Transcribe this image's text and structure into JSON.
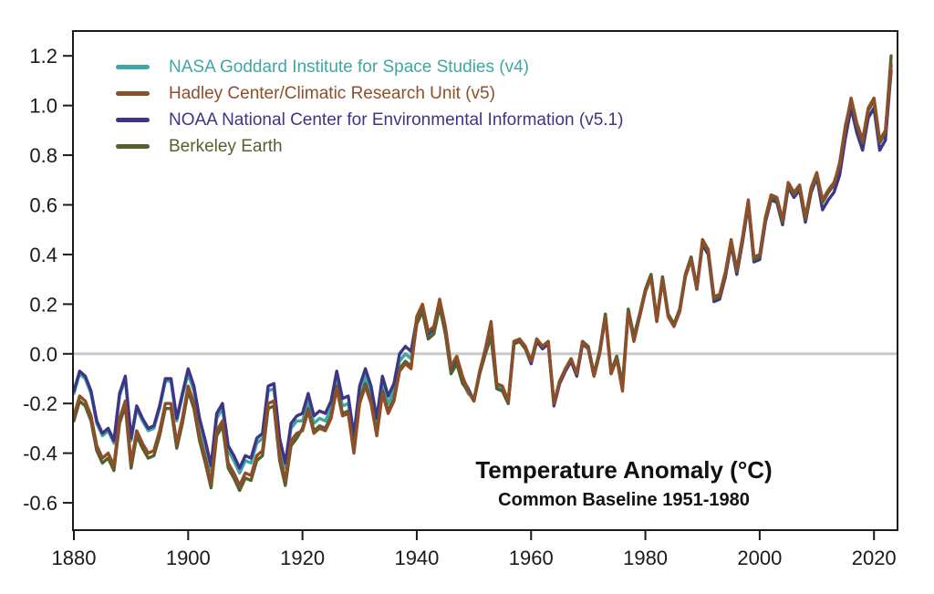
{
  "figure": {
    "background": "#ffffff",
    "frame_color": "#1a1a1a",
    "zero_line_color": "#c8c8c8",
    "text_color": "#1a1a1a"
  },
  "chart_data": {
    "type": "line",
    "title": "Temperature Anomaly (°C)",
    "subtitle": "Common Baseline 1951-1980",
    "xlabel": "",
    "ylabel": "",
    "grid": false,
    "legend_position": "top-left",
    "xlim": [
      1880,
      2023
    ],
    "ylim": [
      -0.71,
      1.3
    ],
    "x_ticks": [
      1880,
      1900,
      1920,
      1940,
      1960,
      1980,
      2000,
      2020
    ],
    "y_ticks": [
      1.2,
      1.0,
      0.8,
      0.6,
      0.4,
      0.2,
      0.0,
      -0.2,
      -0.4,
      -0.6
    ],
    "zero_line": 0.0,
    "x_start_year": 1880,
    "x_step_years": 1,
    "draw_order": [
      0,
      2,
      3,
      1
    ],
    "series": [
      {
        "name": "NASA Goddard Institute for Space Studies (v4)",
        "color": "#3fa7a2",
        "values": [
          -0.16,
          -0.08,
          -0.1,
          -0.16,
          -0.28,
          -0.33,
          -0.31,
          -0.36,
          -0.17,
          -0.1,
          -0.35,
          -0.22,
          -0.27,
          -0.31,
          -0.3,
          -0.22,
          -0.11,
          -0.11,
          -0.27,
          -0.17,
          -0.08,
          -0.15,
          -0.28,
          -0.37,
          -0.47,
          -0.26,
          -0.22,
          -0.39,
          -0.43,
          -0.48,
          -0.43,
          -0.44,
          -0.36,
          -0.34,
          -0.15,
          -0.14,
          -0.36,
          -0.46,
          -0.3,
          -0.27,
          -0.27,
          -0.19,
          -0.28,
          -0.26,
          -0.27,
          -0.22,
          -0.1,
          -0.21,
          -0.2,
          -0.36,
          -0.16,
          -0.09,
          -0.16,
          -0.29,
          -0.12,
          -0.2,
          -0.15,
          -0.03,
          0.0,
          -0.02,
          0.13,
          0.18,
          0.07,
          0.09,
          0.2,
          0.09,
          -0.07,
          -0.03,
          -0.11,
          -0.16,
          -0.18,
          -0.07,
          0.01,
          0.08,
          -0.13,
          -0.14,
          -0.19,
          0.05,
          0.06,
          0.03,
          -0.03,
          0.06,
          0.03,
          0.05,
          -0.2,
          -0.11,
          -0.06,
          -0.02,
          -0.08,
          0.05,
          0.03,
          -0.08,
          0.01,
          0.16,
          -0.07,
          -0.01,
          -0.12,
          0.18,
          0.07,
          0.16,
          0.26,
          0.32,
          0.14,
          0.31,
          0.16,
          0.12,
          0.18,
          0.32,
          0.39,
          0.27,
          0.45,
          0.41,
          0.22,
          0.23,
          0.32,
          0.45,
          0.33,
          0.46,
          0.61,
          0.38,
          0.39,
          0.54,
          0.63,
          0.62,
          0.53,
          0.68,
          0.64,
          0.67,
          0.54,
          0.66,
          0.72,
          0.61,
          0.65,
          0.68,
          0.75,
          0.9,
          1.02,
          0.92,
          0.85,
          0.98,
          1.02,
          0.85,
          0.89,
          1.17
        ]
      },
      {
        "name": "Hadley Center/Climatic Research Unit (v5)",
        "color": "#8e4f28",
        "values": [
          -0.25,
          -0.17,
          -0.19,
          -0.25,
          -0.37,
          -0.42,
          -0.4,
          -0.45,
          -0.26,
          -0.19,
          -0.44,
          -0.31,
          -0.36,
          -0.4,
          -0.39,
          -0.31,
          -0.2,
          -0.2,
          -0.36,
          -0.26,
          -0.13,
          -0.2,
          -0.33,
          -0.42,
          -0.52,
          -0.31,
          -0.27,
          -0.44,
          -0.48,
          -0.53,
          -0.48,
          -0.49,
          -0.41,
          -0.39,
          -0.2,
          -0.19,
          -0.41,
          -0.51,
          -0.35,
          -0.32,
          -0.31,
          -0.23,
          -0.32,
          -0.3,
          -0.31,
          -0.26,
          -0.14,
          -0.25,
          -0.24,
          -0.4,
          -0.2,
          -0.13,
          -0.2,
          -0.33,
          -0.16,
          -0.24,
          -0.19,
          -0.07,
          -0.04,
          -0.06,
          0.15,
          0.2,
          0.09,
          0.11,
          0.22,
          0.11,
          -0.05,
          -0.01,
          -0.09,
          -0.15,
          -0.19,
          -0.07,
          0.02,
          0.13,
          -0.12,
          -0.13,
          -0.19,
          0.05,
          0.06,
          0.03,
          -0.03,
          0.06,
          0.03,
          0.05,
          -0.2,
          -0.11,
          -0.06,
          -0.02,
          -0.08,
          0.05,
          0.02,
          -0.09,
          0.0,
          0.15,
          -0.08,
          -0.02,
          -0.15,
          0.17,
          0.05,
          0.15,
          0.25,
          0.31,
          0.13,
          0.3,
          0.15,
          0.11,
          0.17,
          0.31,
          0.38,
          0.26,
          0.46,
          0.42,
          0.23,
          0.24,
          0.33,
          0.46,
          0.34,
          0.47,
          0.62,
          0.39,
          0.4,
          0.55,
          0.64,
          0.63,
          0.54,
          0.69,
          0.65,
          0.68,
          0.55,
          0.67,
          0.73,
          0.62,
          0.66,
          0.69,
          0.76,
          0.91,
          1.03,
          0.93,
          0.86,
          0.99,
          1.03,
          0.86,
          0.9,
          1.16
        ]
      },
      {
        "name": "NOAA National Center for Environmental Information (v5.1)",
        "color": "#3e3488",
        "values": [
          -0.15,
          -0.07,
          -0.09,
          -0.15,
          -0.27,
          -0.32,
          -0.3,
          -0.35,
          -0.16,
          -0.09,
          -0.34,
          -0.21,
          -0.26,
          -0.3,
          -0.29,
          -0.21,
          -0.1,
          -0.1,
          -0.26,
          -0.16,
          -0.06,
          -0.13,
          -0.26,
          -0.35,
          -0.45,
          -0.24,
          -0.2,
          -0.37,
          -0.41,
          -0.46,
          -0.41,
          -0.42,
          -0.34,
          -0.32,
          -0.13,
          -0.12,
          -0.34,
          -0.44,
          -0.28,
          -0.25,
          -0.24,
          -0.16,
          -0.25,
          -0.23,
          -0.24,
          -0.19,
          -0.07,
          -0.18,
          -0.17,
          -0.33,
          -0.13,
          -0.06,
          -0.13,
          -0.26,
          -0.09,
          -0.17,
          -0.12,
          0.0,
          0.03,
          0.01,
          0.14,
          0.19,
          0.08,
          0.1,
          0.21,
          0.1,
          -0.06,
          -0.02,
          -0.1,
          -0.14,
          -0.19,
          -0.08,
          0.0,
          0.07,
          -0.14,
          -0.15,
          -0.2,
          0.04,
          0.05,
          0.02,
          -0.04,
          0.05,
          0.02,
          0.04,
          -0.21,
          -0.12,
          -0.07,
          -0.03,
          -0.09,
          0.04,
          0.02,
          -0.09,
          0.0,
          0.15,
          -0.08,
          -0.02,
          -0.13,
          0.17,
          0.06,
          0.15,
          0.25,
          0.31,
          0.13,
          0.3,
          0.15,
          0.11,
          0.17,
          0.31,
          0.38,
          0.26,
          0.44,
          0.4,
          0.21,
          0.22,
          0.31,
          0.44,
          0.32,
          0.45,
          0.6,
          0.37,
          0.38,
          0.53,
          0.62,
          0.61,
          0.52,
          0.67,
          0.63,
          0.66,
          0.53,
          0.65,
          0.71,
          0.58,
          0.62,
          0.65,
          0.72,
          0.87,
          0.99,
          0.89,
          0.82,
          0.95,
          0.99,
          0.82,
          0.86,
          1.14
        ]
      },
      {
        "name": "Berkeley Earth",
        "color": "#53612f",
        "values": [
          -0.27,
          -0.19,
          -0.21,
          -0.27,
          -0.39,
          -0.44,
          -0.42,
          -0.47,
          -0.28,
          -0.21,
          -0.46,
          -0.33,
          -0.38,
          -0.42,
          -0.41,
          -0.33,
          -0.22,
          -0.22,
          -0.38,
          -0.28,
          -0.15,
          -0.22,
          -0.35,
          -0.44,
          -0.54,
          -0.33,
          -0.29,
          -0.46,
          -0.5,
          -0.55,
          -0.5,
          -0.51,
          -0.43,
          -0.41,
          -0.22,
          -0.21,
          -0.43,
          -0.53,
          -0.37,
          -0.34,
          -0.3,
          -0.22,
          -0.31,
          -0.29,
          -0.3,
          -0.25,
          -0.13,
          -0.24,
          -0.23,
          -0.39,
          -0.19,
          -0.12,
          -0.19,
          -0.32,
          -0.15,
          -0.23,
          -0.18,
          -0.06,
          -0.03,
          -0.05,
          0.12,
          0.17,
          0.06,
          0.08,
          0.19,
          0.08,
          -0.08,
          -0.04,
          -0.12,
          -0.15,
          -0.19,
          -0.08,
          0.0,
          0.07,
          -0.14,
          -0.15,
          -0.2,
          0.04,
          0.05,
          0.02,
          -0.03,
          0.06,
          0.03,
          0.05,
          -0.2,
          -0.11,
          -0.06,
          -0.02,
          -0.08,
          0.05,
          0.03,
          -0.08,
          0.01,
          0.16,
          -0.07,
          -0.01,
          -0.13,
          0.18,
          0.07,
          0.16,
          0.26,
          0.32,
          0.14,
          0.31,
          0.16,
          0.12,
          0.18,
          0.32,
          0.39,
          0.27,
          0.45,
          0.41,
          0.22,
          0.23,
          0.32,
          0.45,
          0.33,
          0.46,
          0.61,
          0.38,
          0.39,
          0.54,
          0.63,
          0.62,
          0.53,
          0.68,
          0.64,
          0.67,
          0.54,
          0.66,
          0.72,
          0.61,
          0.65,
          0.68,
          0.77,
          0.92,
          1.02,
          0.92,
          0.85,
          0.98,
          1.02,
          0.85,
          0.89,
          1.2
        ]
      }
    ]
  }
}
